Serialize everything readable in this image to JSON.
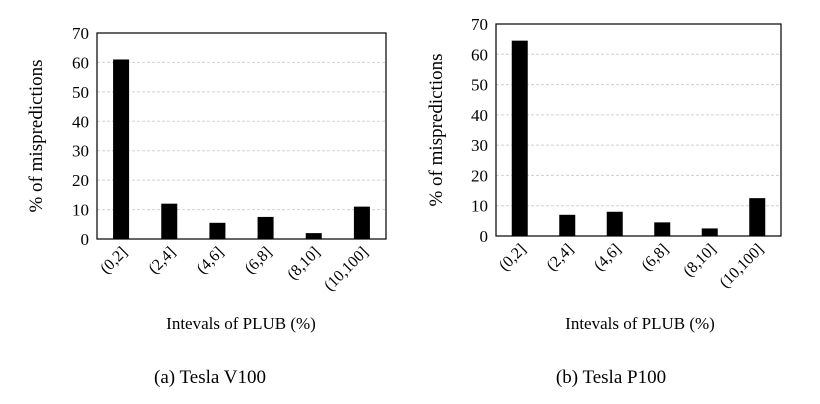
{
  "chart_data": [
    {
      "type": "bar",
      "categories": [
        "(0,2]",
        "(2,4]",
        "(4,6]",
        "(6,8]",
        "(8,10]",
        "(10,100]"
      ],
      "values": [
        61,
        12,
        5.5,
        7.5,
        2,
        11
      ],
      "ylabel": "% of mispredictions",
      "xlabel": "Intevals of PLUB (%)",
      "caption": "(a) Tesla V100",
      "ylim": [
        0,
        70
      ],
      "yticks": [
        0,
        10,
        20,
        30,
        40,
        50,
        60,
        70
      ],
      "grid": true,
      "bar_color": "#000000"
    },
    {
      "type": "bar",
      "categories": [
        "(0,2]",
        "(2,4]",
        "(4,6]",
        "(6,8]",
        "(8,10]",
        "(10,100]"
      ],
      "values": [
        64.5,
        7,
        8,
        4.5,
        2.5,
        12.5
      ],
      "ylabel": "% of mispredictions",
      "xlabel": "Intevals of PLUB (%)",
      "caption": "(b) Tesla P100",
      "ylim": [
        0,
        70
      ],
      "yticks": [
        0,
        10,
        20,
        30,
        40,
        50,
        60,
        70
      ],
      "grid": true,
      "bar_color": "#000000"
    }
  ]
}
